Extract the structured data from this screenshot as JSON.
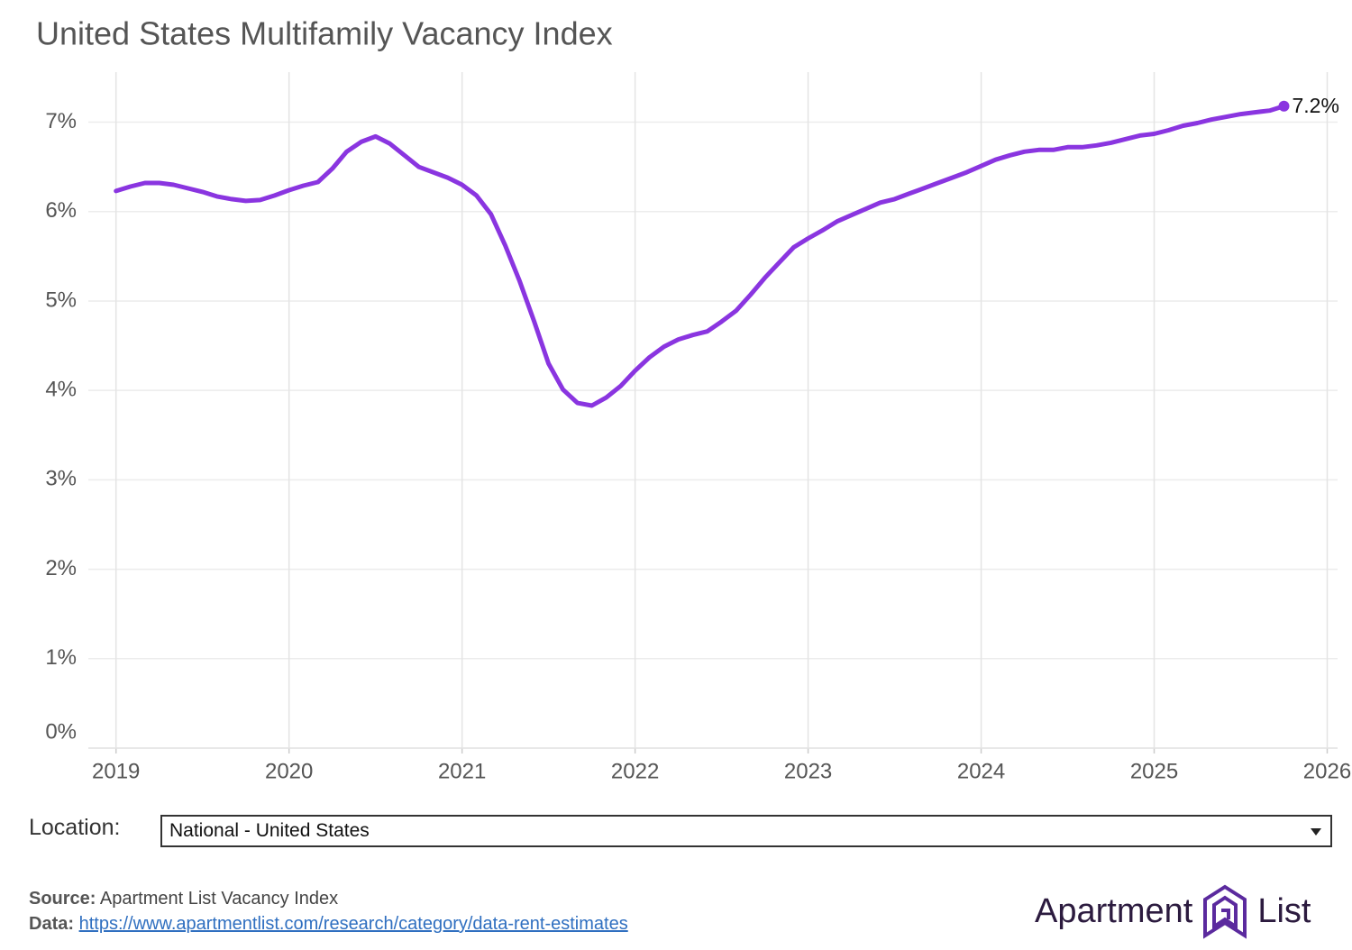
{
  "chart_data": {
    "type": "line",
    "title": "United States Multifamily Vacancy Index",
    "x": [
      2019,
      2019.083,
      2019.167,
      2019.25,
      2019.333,
      2019.417,
      2019.5,
      2019.583,
      2019.667,
      2019.75,
      2019.833,
      2019.917,
      2020,
      2020.083,
      2020.167,
      2020.25,
      2020.333,
      2020.417,
      2020.5,
      2020.583,
      2020.667,
      2020.75,
      2020.833,
      2020.917,
      2021,
      2021.083,
      2021.167,
      2021.25,
      2021.333,
      2021.417,
      2021.5,
      2021.583,
      2021.667,
      2021.75,
      2021.833,
      2021.917,
      2022,
      2022.083,
      2022.167,
      2022.25,
      2022.333,
      2022.417,
      2022.5,
      2022.583,
      2022.667,
      2022.75,
      2022.833,
      2022.917,
      2023,
      2023.083,
      2023.167,
      2023.25,
      2023.333,
      2023.417,
      2023.5,
      2023.583,
      2023.667,
      2023.75,
      2023.833,
      2023.917,
      2024,
      2024.083,
      2024.167,
      2024.25,
      2024.333,
      2024.417,
      2024.5,
      2024.583,
      2024.667,
      2024.75,
      2024.833,
      2024.917,
      2025,
      2025.083,
      2025.167,
      2025.25,
      2025.333,
      2025.417,
      2025.5,
      2025.583,
      2025.667,
      2025.75
    ],
    "series": [
      {
        "color": "#8a35e0",
        "values": [
          6.23,
          6.28,
          6.32,
          6.32,
          6.3,
          6.26,
          6.22,
          6.17,
          6.14,
          6.12,
          6.13,
          6.18,
          6.24,
          6.29,
          6.33,
          6.48,
          6.67,
          6.78,
          6.84,
          6.76,
          6.63,
          6.5,
          6.44,
          6.38,
          6.3,
          6.18,
          5.97,
          5.62,
          5.22,
          4.77,
          4.3,
          4.01,
          3.86,
          3.83,
          3.92,
          4.05,
          4.22,
          4.37,
          4.49,
          4.57,
          4.62,
          4.66,
          4.77,
          4.89,
          5.07,
          5.26,
          5.43,
          5.6,
          5.7,
          5.79,
          5.89,
          5.96,
          6.03,
          6.1,
          6.14,
          6.2,
          6.26,
          6.32,
          6.38,
          6.44,
          6.51,
          6.58,
          6.63,
          6.67,
          6.69,
          6.69,
          6.72,
          6.72,
          6.74,
          6.77,
          6.81,
          6.85,
          6.87,
          6.91,
          6.96,
          6.99,
          7.03,
          7.06,
          7.09,
          7.11,
          7.13,
          7.18
        ],
        "value_labels": [
          null,
          null,
          null,
          null,
          null,
          null,
          null,
          null,
          null,
          null,
          null,
          null,
          null,
          null,
          null,
          null,
          null,
          null,
          null,
          null,
          null,
          null,
          null,
          null,
          null,
          null,
          null,
          null,
          null,
          null,
          null,
          null,
          null,
          null,
          null,
          null,
          null,
          null,
          null,
          null,
          null,
          null,
          null,
          null,
          null,
          null,
          null,
          null,
          null,
          null,
          null,
          null,
          null,
          null,
          null,
          null,
          null,
          null,
          null,
          null,
          null,
          null,
          null,
          null,
          null,
          null,
          null,
          null,
          null,
          null,
          null,
          null,
          null,
          null,
          null,
          null,
          null,
          null,
          null,
          null,
          null,
          "7.2%"
        ]
      }
    ],
    "xlim": [
      2018.84,
      2026.06
    ],
    "xticks": [
      2019,
      2020,
      2021,
      2022,
      2023,
      2024,
      2025,
      2026
    ],
    "ylim": [
      0,
      7.56
    ],
    "yticks": [
      {
        "value": 0,
        "label": "0%"
      },
      {
        "value": 1,
        "label": "1%"
      },
      {
        "value": 2,
        "label": "2%"
      },
      {
        "value": 3,
        "label": "3%"
      },
      {
        "value": 4,
        "label": "4%"
      },
      {
        "value": 5,
        "label": "5%"
      },
      {
        "value": 6,
        "label": "6%"
      },
      {
        "value": 7,
        "label": "7%"
      }
    ],
    "grid": true
  },
  "controls": {
    "location_label": "Location:",
    "location_value": "National - United States"
  },
  "footer": {
    "source_label": "Source:",
    "source_text": "Apartment List Vacancy Index",
    "data_label": "Data:",
    "data_link": "https://www.apartmentlist.com/research/category/data-rent-estimates"
  },
  "logo": {
    "left": "Apartment",
    "right": "List"
  }
}
